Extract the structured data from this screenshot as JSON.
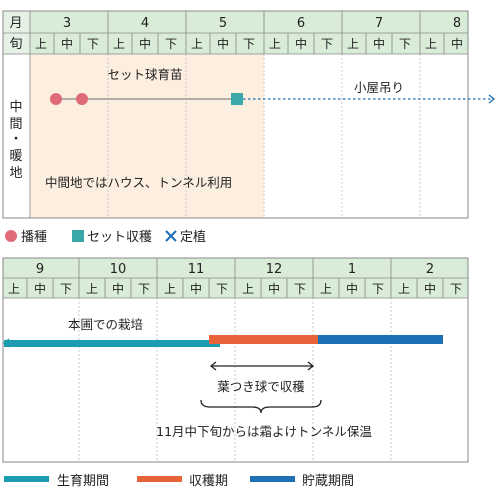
{
  "top_chart": {
    "header_month_label": "月",
    "header_period_label": "旬",
    "months": [
      "3",
      "4",
      "5",
      "6",
      "7",
      "8"
    ],
    "periods": [
      "上",
      "中",
      "下"
    ],
    "row_label": [
      "中",
      "間",
      "・",
      "暖",
      "地"
    ],
    "shaded_until_month": "5",
    "sowing_marks": [
      "3月上旬",
      "3月中旬"
    ],
    "set_harvest_mark": "5月中旬",
    "label_set_seedling": "セット球育苗",
    "label_shed_hanging": "小屋吊り",
    "label_note": "中間地ではハウス、トンネル利用",
    "legend": [
      {
        "symbol": "circle",
        "label": "播種",
        "color": "#e06a78"
      },
      {
        "symbol": "square",
        "label": "セット収穫",
        "color": "#3aa8a8"
      },
      {
        "symbol": "cross",
        "label": "定植",
        "color": "#1f6fb4"
      }
    ]
  },
  "bottom_chart": {
    "months": [
      "9",
      "10",
      "11",
      "12",
      "1",
      "2"
    ],
    "periods": [
      "上",
      "中",
      "下"
    ],
    "label_main_field": "本圃での栽培",
    "label_leaf_harvest": "葉つき球で収穫",
    "label_tunnel_note": "11月中下旬からは霜よけトンネル保温",
    "bars": [
      {
        "name": "生育期間",
        "from": "9月上旬",
        "to": "11月中旬",
        "color": "#1a9bb0"
      },
      {
        "name": "収穫期",
        "from": "11月中旬",
        "to": "12月下旬",
        "color": "#e8633a"
      },
      {
        "name": "貯蔵期間",
        "from": "12月下旬",
        "to": "2月中旬",
        "color": "#1f6fb4"
      }
    ],
    "legend": [
      {
        "label": "生育期間",
        "color": "#1a9bb0"
      },
      {
        "label": "収穫期",
        "color": "#e8633a"
      },
      {
        "label": "貯蔵期間",
        "color": "#1f6fb4"
      }
    ]
  }
}
